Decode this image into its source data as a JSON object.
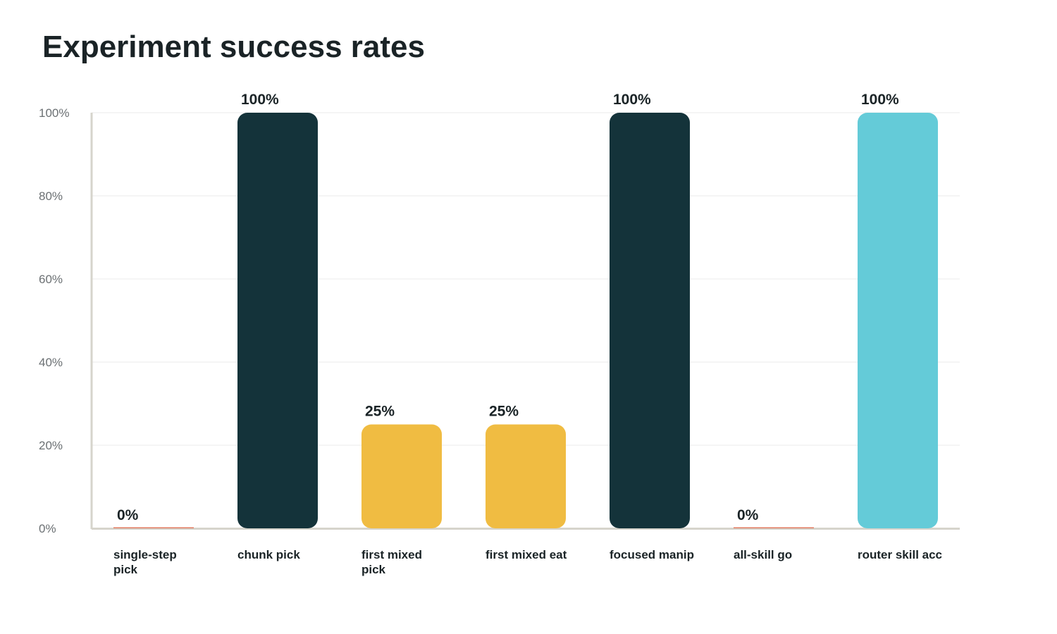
{
  "chart_data": {
    "type": "bar",
    "title": "Experiment success rates",
    "categories": [
      [
        "single-step",
        "pick"
      ],
      [
        "chunk pick"
      ],
      [
        "first mixed",
        "pick"
      ],
      [
        "first mixed eat"
      ],
      [
        "focused manip"
      ],
      [
        "all-skill go"
      ],
      [
        "router skill acc"
      ]
    ],
    "values": [
      0,
      100,
      25,
      25,
      100,
      0,
      100
    ],
    "value_labels": [
      "0%",
      "100%",
      "25%",
      "25%",
      "100%",
      "0%",
      "100%"
    ],
    "bar_colors": [
      "#e07a5f",
      "#14333a",
      "#f0bc42",
      "#f0bc42",
      "#14333a",
      "#e07a5f",
      "#64cbd8"
    ],
    "y_ticks": [
      0,
      20,
      40,
      60,
      80,
      100
    ],
    "y_tick_labels": [
      "0%",
      "20%",
      "40%",
      "60%",
      "80%",
      "100%"
    ],
    "ylim": [
      0,
      100
    ],
    "xlabel": "",
    "ylabel": "",
    "grid": true,
    "legend": false
  },
  "colors": {
    "axis": "#d6d4cc",
    "grid": "#ebebeb",
    "text": "#1a2326",
    "tick_text": "#6b7073"
  }
}
